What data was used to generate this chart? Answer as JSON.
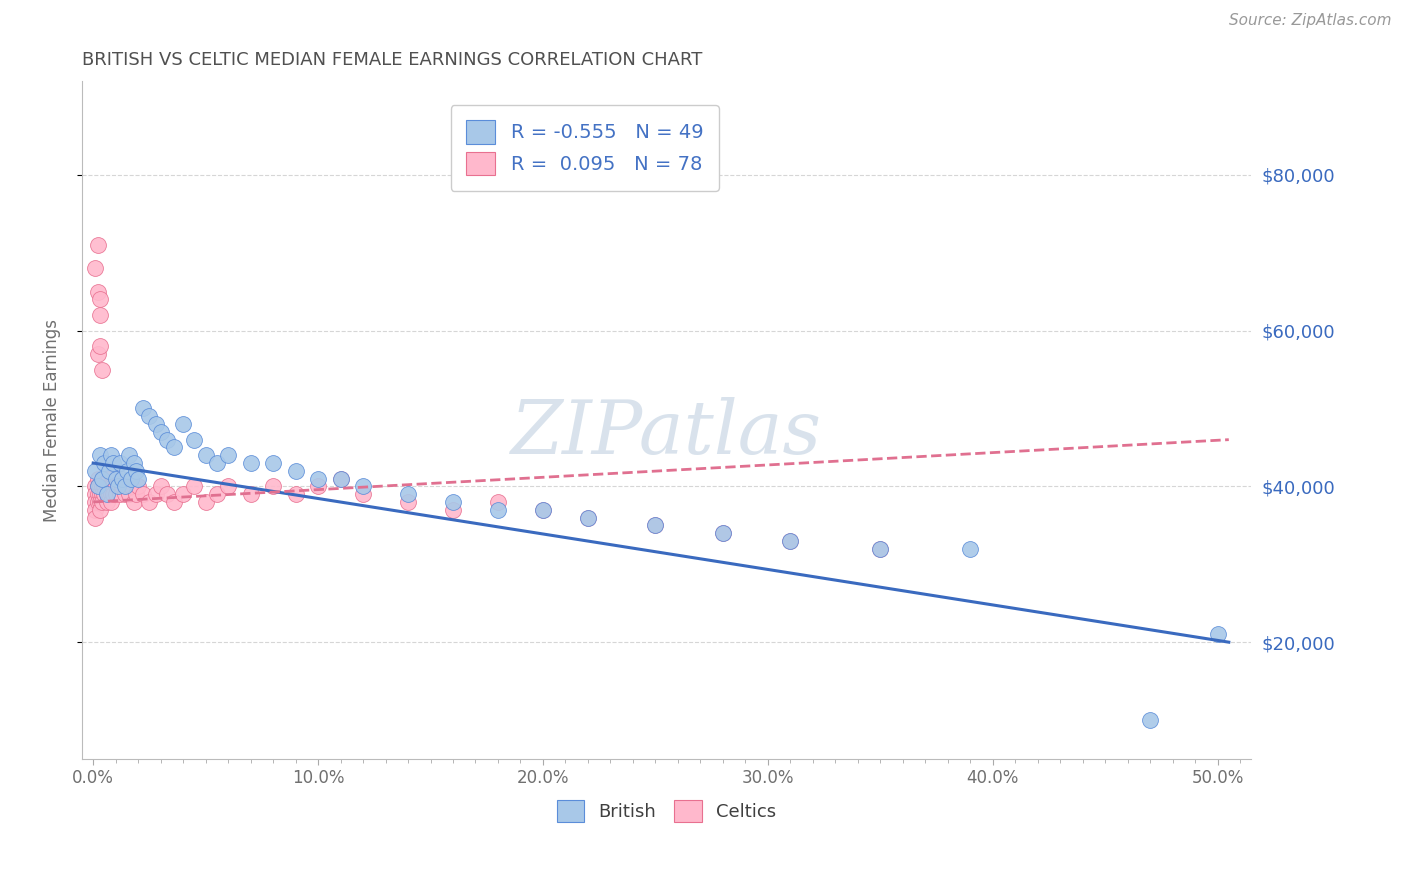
{
  "title": "BRITISH VS CELTIC MEDIAN FEMALE EARNINGS CORRELATION CHART",
  "source_text": "Source: ZipAtlas.com",
  "ylabel": "Median Female Earnings",
  "ytick_labels": [
    "$20,000",
    "$40,000",
    "$60,000",
    "$80,000"
  ],
  "ytick_values": [
    20000,
    40000,
    60000,
    80000
  ],
  "xlim": [
    -0.005,
    0.515
  ],
  "ylim": [
    5000,
    92000
  ],
  "british_R": "-0.555",
  "british_N": "49",
  "celtics_R": "0.095",
  "celtics_N": "78",
  "legend_british_label": "British",
  "legend_celtics_label": "Celtics",
  "british_color": "#A8C8E8",
  "british_edge_color": "#5B8DD9",
  "british_line_color": "#3A6ABF",
  "celtics_color": "#FFB8CC",
  "celtics_edge_color": "#E87090",
  "celtics_line_color": "#E07090",
  "background_color": "#FFFFFF",
  "grid_color": "#CCCCCC",
  "title_color": "#505050",
  "watermark_color": "#C0D0E0",
  "legend_text_color": "#4472C4",
  "british_x": [
    0.001,
    0.002,
    0.003,
    0.004,
    0.005,
    0.006,
    0.007,
    0.008,
    0.009,
    0.01,
    0.011,
    0.012,
    0.013,
    0.014,
    0.015,
    0.016,
    0.017,
    0.018,
    0.019,
    0.02,
    0.022,
    0.025,
    0.028,
    0.03,
    0.033,
    0.036,
    0.04,
    0.045,
    0.05,
    0.055,
    0.06,
    0.07,
    0.08,
    0.09,
    0.1,
    0.11,
    0.12,
    0.14,
    0.16,
    0.18,
    0.2,
    0.22,
    0.25,
    0.28,
    0.31,
    0.35,
    0.39,
    0.47,
    0.5
  ],
  "british_y": [
    42000,
    40000,
    44000,
    41000,
    43000,
    39000,
    42000,
    44000,
    43000,
    41000,
    40000,
    43000,
    41000,
    40000,
    42000,
    44000,
    41000,
    43000,
    42000,
    41000,
    50000,
    49000,
    48000,
    47000,
    46000,
    45000,
    48000,
    46000,
    44000,
    43000,
    44000,
    43000,
    43000,
    42000,
    41000,
    41000,
    40000,
    39000,
    38000,
    37000,
    37000,
    36000,
    35000,
    34000,
    33000,
    32000,
    32000,
    10000,
    21000
  ],
  "celtics_x": [
    0.001,
    0.001,
    0.001,
    0.001,
    0.001,
    0.002,
    0.002,
    0.002,
    0.002,
    0.003,
    0.003,
    0.003,
    0.003,
    0.004,
    0.004,
    0.004,
    0.004,
    0.005,
    0.005,
    0.005,
    0.006,
    0.006,
    0.006,
    0.007,
    0.007,
    0.007,
    0.008,
    0.008,
    0.008,
    0.009,
    0.009,
    0.01,
    0.01,
    0.01,
    0.011,
    0.012,
    0.013,
    0.014,
    0.015,
    0.016,
    0.017,
    0.018,
    0.019,
    0.02,
    0.022,
    0.025,
    0.028,
    0.03,
    0.033,
    0.036,
    0.04,
    0.045,
    0.05,
    0.055,
    0.06,
    0.07,
    0.08,
    0.09,
    0.1,
    0.11,
    0.12,
    0.14,
    0.16,
    0.18,
    0.2,
    0.22,
    0.25,
    0.28,
    0.31,
    0.35,
    0.001,
    0.002,
    0.003,
    0.002,
    0.003,
    0.004,
    0.002,
    0.003
  ],
  "celtics_y": [
    40000,
    39000,
    38000,
    37000,
    36000,
    41000,
    40000,
    39000,
    38000,
    40000,
    39000,
    38000,
    37000,
    41000,
    40000,
    39000,
    38000,
    41000,
    40000,
    39000,
    40000,
    39000,
    38000,
    41000,
    40000,
    39000,
    40000,
    39000,
    38000,
    40000,
    39000,
    41000,
    40000,
    39000,
    40000,
    39000,
    40000,
    39000,
    40000,
    39000,
    40000,
    38000,
    39000,
    40000,
    39000,
    38000,
    39000,
    40000,
    39000,
    38000,
    39000,
    40000,
    38000,
    39000,
    40000,
    39000,
    40000,
    39000,
    40000,
    41000,
    39000,
    38000,
    37000,
    38000,
    37000,
    36000,
    35000,
    34000,
    33000,
    32000,
    68000,
    65000,
    62000,
    57000,
    58000,
    55000,
    71000,
    64000
  ],
  "brit_line_x0": 0.0,
  "brit_line_y0": 43000,
  "brit_line_x1": 0.505,
  "brit_line_y1": 20000,
  "celt_line_x0": 0.0,
  "celt_line_y0": 38000,
  "celt_line_x1": 0.505,
  "celt_line_y1": 46000
}
